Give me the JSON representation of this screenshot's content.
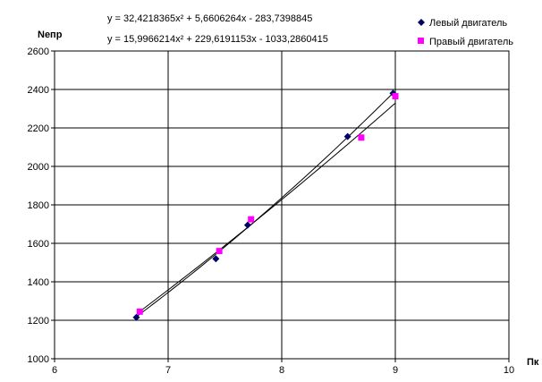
{
  "chart_data": {
    "type": "scatter",
    "ylabel": "Nепр",
    "xlabel": "Пк",
    "xlim": [
      6,
      10
    ],
    "ylim": [
      1000,
      2600
    ],
    "x_ticks": [
      6,
      7,
      8,
      9,
      10
    ],
    "y_ticks": [
      1000,
      1200,
      1400,
      1600,
      1800,
      2000,
      2200,
      2400,
      2600
    ],
    "grid": true,
    "legend_position": "top-right",
    "series": [
      {
        "name": "Левый двигатель",
        "marker": "diamond",
        "color": "#000066",
        "points": [
          [
            6.72,
            1215
          ],
          [
            7.42,
            1520
          ],
          [
            7.7,
            1695
          ],
          [
            8.58,
            2155
          ],
          [
            8.98,
            2380
          ]
        ],
        "trendline": {
          "equation": "y = 32,4218365x² + 5,6606264x - 283,7398845",
          "coeffs": [
            32.4218365,
            5.6606264,
            -283.7398845
          ]
        }
      },
      {
        "name": "Правый двигатель",
        "marker": "square",
        "color": "#ff00ff",
        "points": [
          [
            6.75,
            1245
          ],
          [
            7.45,
            1560
          ],
          [
            7.73,
            1725
          ],
          [
            8.7,
            2150
          ],
          [
            9.0,
            2365
          ]
        ],
        "trendline": {
          "equation": "y = 15,9966214x² + 229,6191153x - 1033,2860415",
          "coeffs": [
            15.9966214,
            229.6191153,
            -1033.2860415
          ]
        }
      }
    ]
  }
}
